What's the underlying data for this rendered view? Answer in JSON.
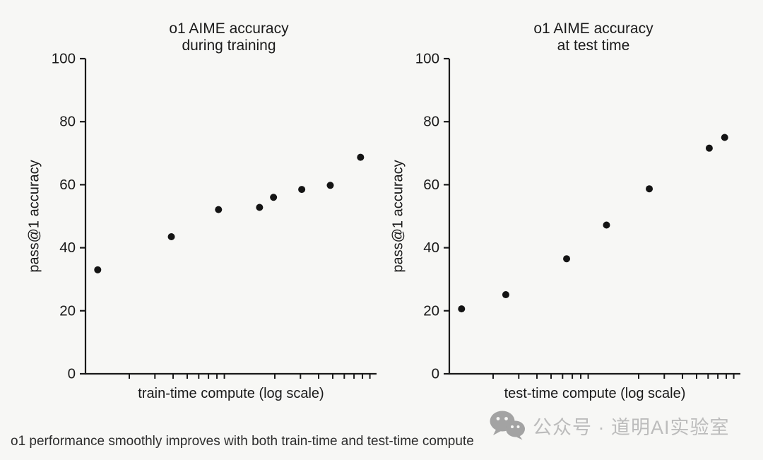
{
  "page": {
    "background_color": "#f7f7f5",
    "axis_color": "#1a1a1a",
    "dot_color": "#141414"
  },
  "caption": "o1 performance smoothly improves with both train-time and test-time compute",
  "watermark": {
    "icon": "wechat-icon",
    "icon_color": "#a3a3a3",
    "text": "公众号 · 道明AI实验室",
    "text_color": "#bcbcbc"
  },
  "chart_data": [
    {
      "type": "scatter",
      "title_lines": [
        "o1 AIME accuracy",
        "during training"
      ],
      "xlabel": "train-time compute (log scale)",
      "ylabel": "pass@1 accuracy",
      "x_scale": "log",
      "x_decades": 2,
      "x_tick_labels_shown": false,
      "ylim": [
        0,
        100
      ],
      "yticks": [
        0,
        20,
        40,
        60,
        80,
        100
      ],
      "grid": false,
      "legend": "none",
      "points": [
        {
          "x_norm": 0.042,
          "y": 33.0
        },
        {
          "x_norm": 0.295,
          "y": 43.5
        },
        {
          "x_norm": 0.457,
          "y": 52.1
        },
        {
          "x_norm": 0.598,
          "y": 52.8
        },
        {
          "x_norm": 0.646,
          "y": 56.0
        },
        {
          "x_norm": 0.743,
          "y": 58.5
        },
        {
          "x_norm": 0.841,
          "y": 59.8
        },
        {
          "x_norm": 0.945,
          "y": 68.7
        }
      ]
    },
    {
      "type": "scatter",
      "title_lines": [
        "o1 AIME accuracy",
        "at test time"
      ],
      "xlabel": "test-time compute (log scale)",
      "ylabel": "pass@1 accuracy",
      "x_scale": "log",
      "x_decades": 2,
      "x_tick_labels_shown": false,
      "ylim": [
        0,
        100
      ],
      "yticks": [
        0,
        20,
        40,
        60,
        80,
        100
      ],
      "grid": false,
      "legend": "none",
      "points": [
        {
          "x_norm": 0.042,
          "y": 20.6
        },
        {
          "x_norm": 0.194,
          "y": 25.1
        },
        {
          "x_norm": 0.403,
          "y": 36.5
        },
        {
          "x_norm": 0.54,
          "y": 47.2
        },
        {
          "x_norm": 0.687,
          "y": 58.7
        },
        {
          "x_norm": 0.893,
          "y": 71.6
        },
        {
          "x_norm": 0.946,
          "y": 75.0
        }
      ]
    }
  ]
}
